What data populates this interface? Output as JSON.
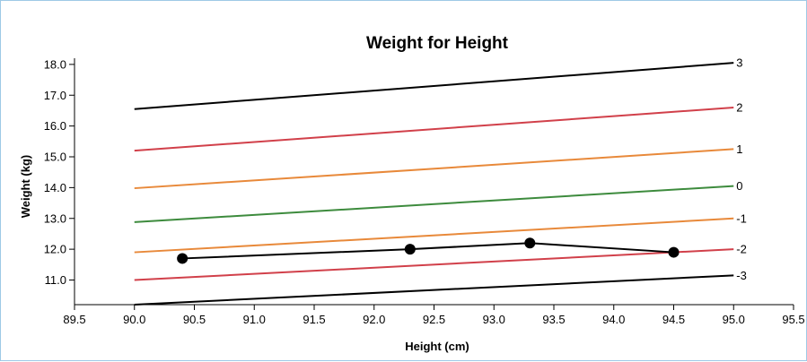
{
  "chart_data": {
    "type": "line",
    "title": "Weight for Height",
    "xlabel": "Height (cm)",
    "ylabel": "Weight (kg)",
    "xlim": [
      89.5,
      95.5
    ],
    "ylim": [
      10.2,
      18.2
    ],
    "x_ticks": [
      "89.5",
      "90.0",
      "90.5",
      "91.0",
      "91.5",
      "92.0",
      "92.5",
      "93.0",
      "93.5",
      "94.0",
      "94.5",
      "95.0",
      "95.5"
    ],
    "y_ticks": [
      "11.0",
      "12.0",
      "13.0",
      "14.0",
      "15.0",
      "16.0",
      "17.0",
      "18.0"
    ],
    "grid": false,
    "reference_lines": [
      {
        "name": "3",
        "color": "#000000",
        "x": [
          90.0,
          95.0
        ],
        "y": [
          16.55,
          18.05
        ]
      },
      {
        "name": "2",
        "color": "#d1404a",
        "x": [
          90.0,
          95.0
        ],
        "y": [
          15.2,
          16.6
        ]
      },
      {
        "name": "1",
        "color": "#e8893a",
        "x": [
          90.0,
          95.0
        ],
        "y": [
          13.98,
          15.25
        ]
      },
      {
        "name": "0",
        "color": "#3d8b3d",
        "x": [
          90.0,
          95.0
        ],
        "y": [
          12.88,
          14.05
        ]
      },
      {
        "name": "-1",
        "color": "#e8893a",
        "x": [
          90.0,
          95.0
        ],
        "y": [
          11.9,
          13.0
        ]
      },
      {
        "name": "-2",
        "color": "#d1404a",
        "x": [
          90.0,
          95.0
        ],
        "y": [
          11.0,
          12.0
        ]
      },
      {
        "name": "-3",
        "color": "#000000",
        "x": [
          90.0,
          95.0
        ],
        "y": [
          10.2,
          11.15
        ]
      }
    ],
    "measurements": {
      "color": "#000000",
      "x": [
        90.4,
        92.3,
        93.3,
        94.5
      ],
      "y": [
        11.7,
        12.0,
        12.2,
        11.9
      ]
    }
  }
}
